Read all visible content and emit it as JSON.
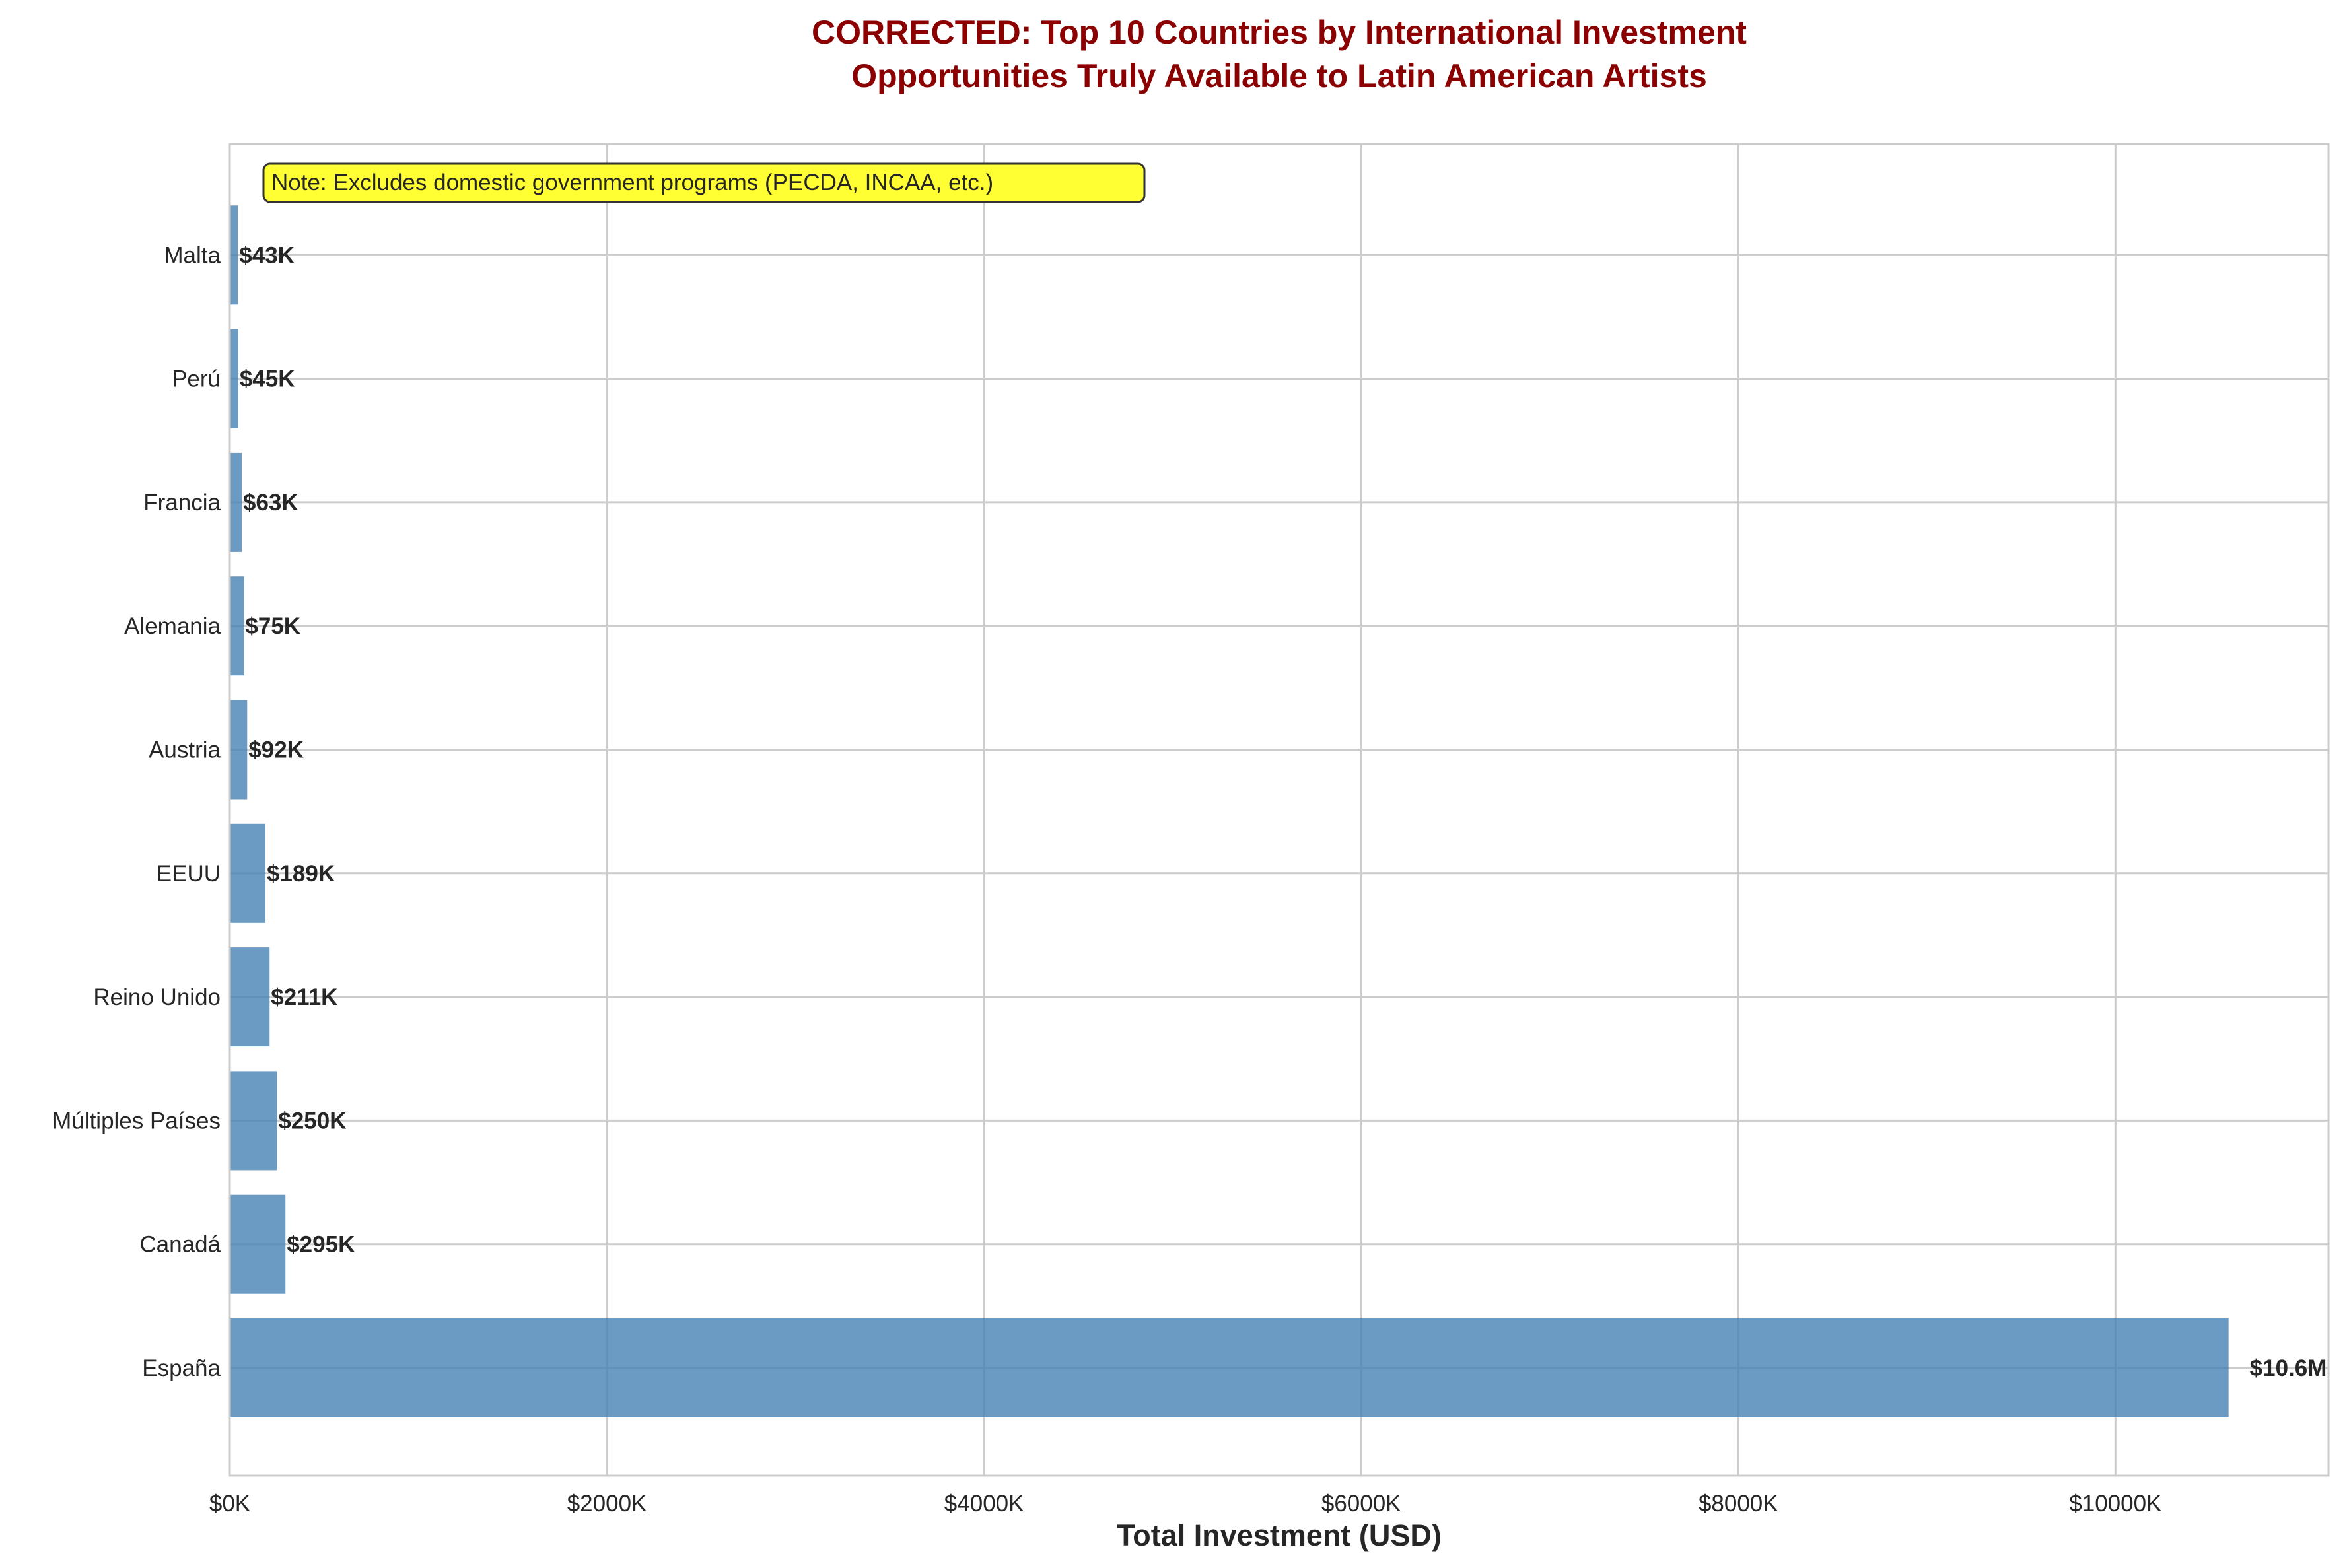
{
  "chart_data": {
    "type": "bar",
    "orientation": "horizontal",
    "title_lines": [
      "CORRECTED: Top 10 Countries by International Investment",
      "Opportunities Truly Available to Latin American Artists"
    ],
    "xlabel": "Total Investment (USD)",
    "ylabel": "",
    "unit": "thousand USD",
    "xlim": [
      0,
      11130
    ],
    "xticks": [
      {
        "value": 0,
        "label": "$0K"
      },
      {
        "value": 2000,
        "label": "$2000K"
      },
      {
        "value": 4000,
        "label": "$4000K"
      },
      {
        "value": 6000,
        "label": "$6000K"
      },
      {
        "value": 8000,
        "label": "$8000K"
      },
      {
        "value": 10000,
        "label": "$10000K"
      }
    ],
    "categories": [
      "España",
      "Canadá",
      "Múltiples Países",
      "Reino Unido",
      "EEUU",
      "Austria",
      "Alemania",
      "Francia",
      "Perú",
      "Malta"
    ],
    "values": [
      10600,
      295,
      250,
      211,
      189,
      92,
      75,
      63,
      45,
      43
    ],
    "labels": [
      "$10.6M",
      "$295K",
      "$250K",
      "$211K",
      "$189K",
      "$92K",
      "$75K",
      "$63K",
      "$45K",
      "$43K"
    ],
    "grid": true,
    "legend": "none",
    "annotation": "Note: Excludes domestic government programs (PECDA, INCAA, etc.)",
    "colors": {
      "bar": "#4682b4",
      "title": "#8b0000",
      "grid": "#cccccc",
      "annotation_bg": "#ffff33",
      "text": "#262626"
    }
  }
}
